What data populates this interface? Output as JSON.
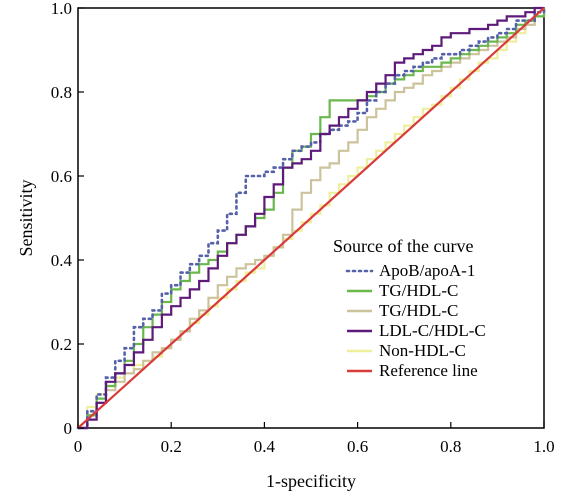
{
  "chart_data": {
    "type": "line",
    "xlabel": "1-specificity",
    "ylabel": "Sensitivity",
    "xlim": [
      0,
      1.0
    ],
    "ylim": [
      0,
      1.0
    ],
    "x_ticks": [
      "0",
      "0.2",
      "0.4",
      "0.6",
      "0.8",
      "1.0"
    ],
    "y_ticks": [
      "0",
      "0.2",
      "0.4",
      "0.6",
      "0.8",
      "1.0"
    ],
    "grid": false,
    "legend": {
      "title": "Source of the curve",
      "placement": "bottom-right"
    },
    "series": [
      {
        "name": "ApoB/apoA-1",
        "color": "#5561a8",
        "dash": "dotted",
        "x": [
          0,
          0.02,
          0.04,
          0.06,
          0.08,
          0.1,
          0.12,
          0.14,
          0.16,
          0.18,
          0.2,
          0.22,
          0.24,
          0.26,
          0.28,
          0.3,
          0.32,
          0.34,
          0.36,
          0.38,
          0.4,
          0.42,
          0.44,
          0.46,
          0.48,
          0.5,
          0.52,
          0.54,
          0.56,
          0.58,
          0.6,
          0.62,
          0.64,
          0.66,
          0.68,
          0.7,
          0.72,
          0.74,
          0.76,
          0.78,
          0.8,
          0.82,
          0.84,
          0.86,
          0.88,
          0.9,
          0.92,
          0.94,
          0.96,
          0.98,
          1.0
        ],
        "y": [
          0,
          0.04,
          0.08,
          0.12,
          0.16,
          0.19,
          0.24,
          0.26,
          0.28,
          0.32,
          0.34,
          0.37,
          0.39,
          0.41,
          0.44,
          0.47,
          0.51,
          0.56,
          0.6,
          0.6,
          0.61,
          0.62,
          0.64,
          0.66,
          0.67,
          0.68,
          0.7,
          0.71,
          0.72,
          0.73,
          0.75,
          0.78,
          0.8,
          0.82,
          0.84,
          0.85,
          0.86,
          0.87,
          0.88,
          0.89,
          0.89,
          0.9,
          0.91,
          0.92,
          0.93,
          0.94,
          0.95,
          0.97,
          0.97,
          0.99,
          1.0
        ]
      },
      {
        "name": "TG/HDL-C",
        "color": "#6ab84d",
        "dash": "solid",
        "x": [
          0,
          0.02,
          0.04,
          0.06,
          0.08,
          0.1,
          0.12,
          0.14,
          0.16,
          0.18,
          0.2,
          0.22,
          0.24,
          0.26,
          0.28,
          0.3,
          0.32,
          0.34,
          0.36,
          0.38,
          0.4,
          0.42,
          0.44,
          0.46,
          0.48,
          0.5,
          0.52,
          0.54,
          0.56,
          0.58,
          0.6,
          0.62,
          0.64,
          0.66,
          0.68,
          0.7,
          0.72,
          0.74,
          0.76,
          0.78,
          0.8,
          0.82,
          0.84,
          0.86,
          0.88,
          0.9,
          0.92,
          0.94,
          0.96,
          0.98,
          1.0
        ],
        "y": [
          0,
          0.03,
          0.07,
          0.1,
          0.13,
          0.16,
          0.2,
          0.24,
          0.27,
          0.3,
          0.33,
          0.35,
          0.37,
          0.39,
          0.4,
          0.42,
          0.44,
          0.46,
          0.48,
          0.5,
          0.52,
          0.56,
          0.62,
          0.66,
          0.67,
          0.7,
          0.74,
          0.78,
          0.78,
          0.78,
          0.78,
          0.79,
          0.8,
          0.82,
          0.83,
          0.84,
          0.85,
          0.86,
          0.86,
          0.87,
          0.88,
          0.89,
          0.9,
          0.91,
          0.92,
          0.93,
          0.94,
          0.96,
          0.97,
          0.98,
          1.0
        ]
      },
      {
        "name": "TG/HDL-C",
        "color": "#ccc39c",
        "dash": "solid",
        "x": [
          0,
          0.02,
          0.04,
          0.06,
          0.08,
          0.1,
          0.12,
          0.14,
          0.16,
          0.18,
          0.2,
          0.22,
          0.24,
          0.26,
          0.28,
          0.3,
          0.32,
          0.34,
          0.36,
          0.38,
          0.4,
          0.42,
          0.44,
          0.46,
          0.48,
          0.5,
          0.52,
          0.54,
          0.56,
          0.58,
          0.6,
          0.62,
          0.64,
          0.66,
          0.68,
          0.7,
          0.72,
          0.74,
          0.76,
          0.78,
          0.8,
          0.82,
          0.84,
          0.86,
          0.88,
          0.9,
          0.92,
          0.94,
          0.96,
          0.98,
          1.0
        ],
        "y": [
          0,
          0.03,
          0.06,
          0.09,
          0.11,
          0.13,
          0.14,
          0.16,
          0.18,
          0.19,
          0.21,
          0.23,
          0.26,
          0.28,
          0.31,
          0.34,
          0.36,
          0.38,
          0.39,
          0.4,
          0.41,
          0.43,
          0.46,
          0.52,
          0.56,
          0.59,
          0.62,
          0.63,
          0.66,
          0.68,
          0.71,
          0.74,
          0.76,
          0.78,
          0.8,
          0.81,
          0.82,
          0.84,
          0.85,
          0.86,
          0.87,
          0.88,
          0.89,
          0.9,
          0.91,
          0.92,
          0.93,
          0.95,
          0.96,
          0.98,
          1.0
        ]
      },
      {
        "name": "LDL-C/HDL-C",
        "color": "#5e1a7a",
        "dash": "solid",
        "x": [
          0,
          0.02,
          0.04,
          0.06,
          0.08,
          0.1,
          0.12,
          0.14,
          0.16,
          0.18,
          0.2,
          0.22,
          0.24,
          0.26,
          0.28,
          0.3,
          0.32,
          0.34,
          0.36,
          0.38,
          0.4,
          0.42,
          0.44,
          0.46,
          0.48,
          0.5,
          0.52,
          0.54,
          0.56,
          0.58,
          0.6,
          0.62,
          0.64,
          0.66,
          0.68,
          0.7,
          0.72,
          0.74,
          0.76,
          0.78,
          0.8,
          0.82,
          0.84,
          0.86,
          0.88,
          0.9,
          0.92,
          0.94,
          0.96,
          0.98,
          1.0
        ],
        "y": [
          0,
          0.02,
          0.06,
          0.11,
          0.13,
          0.15,
          0.18,
          0.21,
          0.24,
          0.27,
          0.29,
          0.31,
          0.33,
          0.35,
          0.38,
          0.41,
          0.44,
          0.46,
          0.48,
          0.51,
          0.55,
          0.58,
          0.62,
          0.63,
          0.64,
          0.66,
          0.7,
          0.72,
          0.74,
          0.76,
          0.78,
          0.8,
          0.82,
          0.84,
          0.87,
          0.88,
          0.89,
          0.9,
          0.91,
          0.93,
          0.94,
          0.94,
          0.95,
          0.95,
          0.96,
          0.97,
          0.98,
          0.98,
          0.99,
          1.0,
          1.0
        ]
      },
      {
        "name": "Non-HDL-C",
        "color": "#eeef9c",
        "dash": "solid",
        "x": [
          0,
          0.02,
          0.04,
          0.06,
          0.08,
          0.1,
          0.12,
          0.14,
          0.16,
          0.18,
          0.2,
          0.22,
          0.24,
          0.26,
          0.28,
          0.3,
          0.32,
          0.34,
          0.36,
          0.38,
          0.4,
          0.42,
          0.44,
          0.46,
          0.48,
          0.5,
          0.52,
          0.54,
          0.56,
          0.58,
          0.6,
          0.62,
          0.64,
          0.66,
          0.68,
          0.7,
          0.72,
          0.74,
          0.76,
          0.78,
          0.8,
          0.82,
          0.84,
          0.86,
          0.88,
          0.9,
          0.92,
          0.94,
          0.96,
          0.98,
          1.0
        ],
        "y": [
          0,
          0.05,
          0.08,
          0.1,
          0.12,
          0.13,
          0.15,
          0.16,
          0.17,
          0.19,
          0.21,
          0.23,
          0.25,
          0.27,
          0.29,
          0.31,
          0.33,
          0.35,
          0.37,
          0.38,
          0.41,
          0.43,
          0.45,
          0.47,
          0.49,
          0.51,
          0.53,
          0.56,
          0.58,
          0.6,
          0.62,
          0.64,
          0.66,
          0.68,
          0.7,
          0.72,
          0.74,
          0.76,
          0.77,
          0.79,
          0.81,
          0.83,
          0.85,
          0.87,
          0.88,
          0.9,
          0.92,
          0.94,
          0.96,
          0.98,
          1.0
        ]
      },
      {
        "name": "Reference line",
        "color": "#d93b3b",
        "dash": "solid",
        "x": [
          0,
          1.0
        ],
        "y": [
          0,
          1.0
        ]
      }
    ]
  }
}
